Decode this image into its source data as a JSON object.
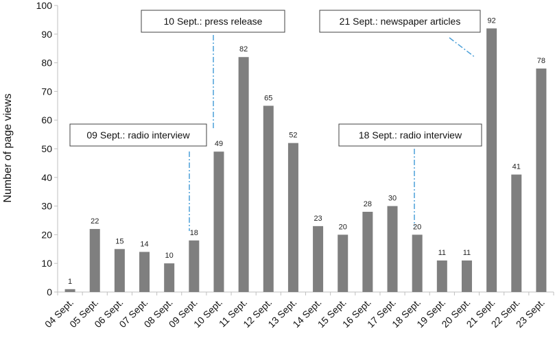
{
  "chart_data": {
    "type": "bar",
    "title": "",
    "xlabel": "",
    "ylabel": "Number of page views",
    "ylim": [
      0,
      100
    ],
    "yticks": [
      0,
      10,
      20,
      30,
      40,
      50,
      60,
      70,
      80,
      90,
      100
    ],
    "grid": false,
    "bar_color": "#7f7f7f",
    "annotation_line_color": "#4a9fd8",
    "categories": [
      "04 Sept.",
      "05 Sept.",
      "06 Sept.",
      "07 Sept.",
      "08 Sept.",
      "09 Sept.",
      "10 Sept.",
      "11 Sept.",
      "12 Sept.",
      "13 Sept.",
      "14 Sept.",
      "15 Sept.",
      "16 Sept.",
      "17 Sept.",
      "18 Sept.",
      "19 Sept.",
      "20 Sept.",
      "21 Sept.",
      "22 Sept.",
      "23 Sept."
    ],
    "values": [
      1,
      22,
      15,
      14,
      10,
      18,
      49,
      82,
      65,
      52,
      23,
      20,
      28,
      30,
      20,
      11,
      11,
      92,
      41,
      78
    ],
    "annotations": [
      {
        "text": "09 Sept.: radio interview",
        "target": "09 Sept."
      },
      {
        "text": "10 Sept.: press release",
        "target": "10 Sept."
      },
      {
        "text": "18 Sept.: radio interview",
        "target": "18 Sept."
      },
      {
        "text": "21 Sept.: newspaper articles",
        "target": "21 Sept."
      }
    ]
  }
}
